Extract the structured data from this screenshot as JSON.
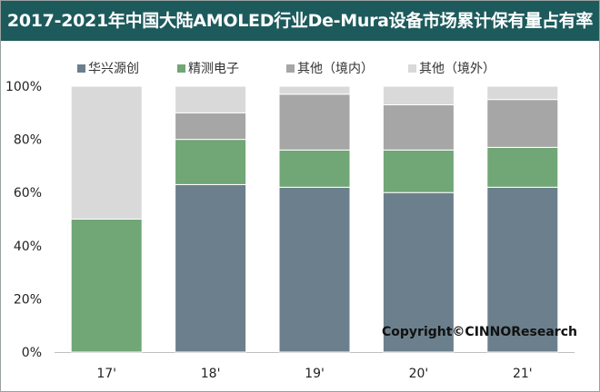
{
  "title": "2017-2021年中国大陆AMOLED行业De-Mura设备市场累计保有量占有率",
  "copyright": "Copyright©CINNOResearch",
  "colors": {
    "title_bg": "#1d5a5c",
    "series": [
      "#6b808c",
      "#71a676",
      "#a6a6a6",
      "#d9d9d9"
    ]
  },
  "chart_data": {
    "type": "bar",
    "stacked": true,
    "title": "2017-2021年中国大陆AMOLED行业De-Mura设备市场累计保有量占有率",
    "categories": [
      "17'",
      "18'",
      "19'",
      "20'",
      "21'"
    ],
    "series": [
      {
        "name": "华兴源创",
        "values": [
          0,
          63,
          62,
          60,
          62
        ]
      },
      {
        "name": "精测电子",
        "values": [
          50,
          17,
          14,
          16,
          15
        ]
      },
      {
        "name": "其他（境内）",
        "values": [
          0,
          10,
          21,
          17,
          18
        ]
      },
      {
        "name": "其他（境外）",
        "values": [
          50,
          10,
          3,
          7,
          5
        ]
      }
    ],
    "ylim": [
      0,
      100
    ],
    "yticks": [
      "0%",
      "20%",
      "40%",
      "60%",
      "80%",
      "100%"
    ],
    "legend_position": "top",
    "grid": false
  }
}
